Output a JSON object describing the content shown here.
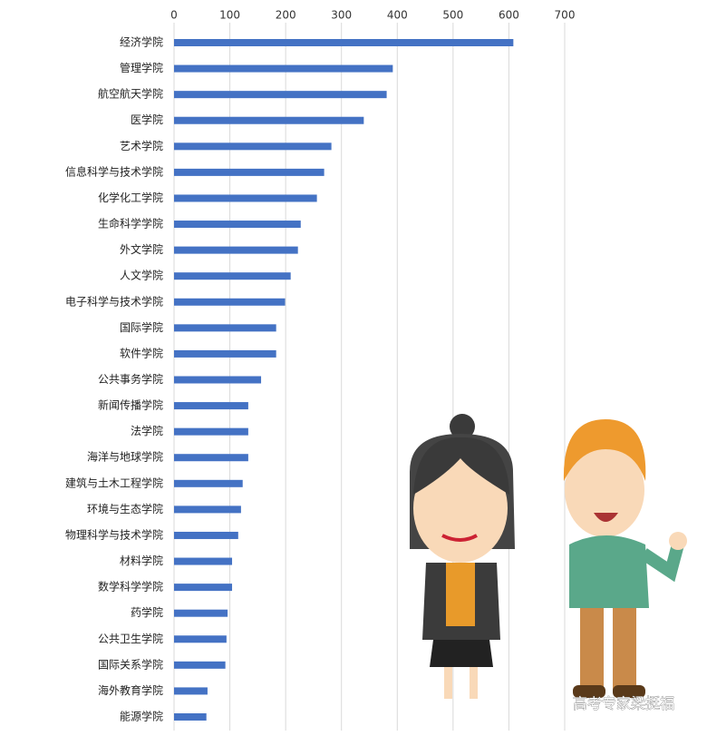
{
  "chart_data": {
    "type": "bar",
    "orientation": "horizontal",
    "categories": [
      "经济学院",
      "管理学院",
      "航空航天学院",
      "医学院",
      "艺术学院",
      "信息科学与技术学院",
      "化学化工学院",
      "生命科学学院",
      "外文学院",
      "人文学院",
      "电子科学与技术学院",
      "国际学院",
      "软件学院",
      "公共事务学院",
      "新闻传播学院",
      "法学院",
      "海洋与地球学院",
      "建筑与土木工程学院",
      "环境与生态学院",
      "物理科学与技术学院",
      "材料学院",
      "数学科学学院",
      "药学院",
      "公共卫生学院",
      "国际关系学院",
      "海外教育学院",
      "能源学院"
    ],
    "values": [
      608,
      392,
      381,
      340,
      282,
      269,
      256,
      227,
      222,
      209,
      199,
      183,
      183,
      156,
      133,
      133,
      133,
      123,
      120,
      115,
      104,
      104,
      96,
      94,
      92,
      60,
      58
    ],
    "color": "#4472c4",
    "xlim": [
      0,
      700
    ],
    "xticks": [
      0,
      100,
      200,
      300,
      400,
      500,
      600,
      700
    ],
    "grid": true
  },
  "watermark": "高考专家梁挺福"
}
